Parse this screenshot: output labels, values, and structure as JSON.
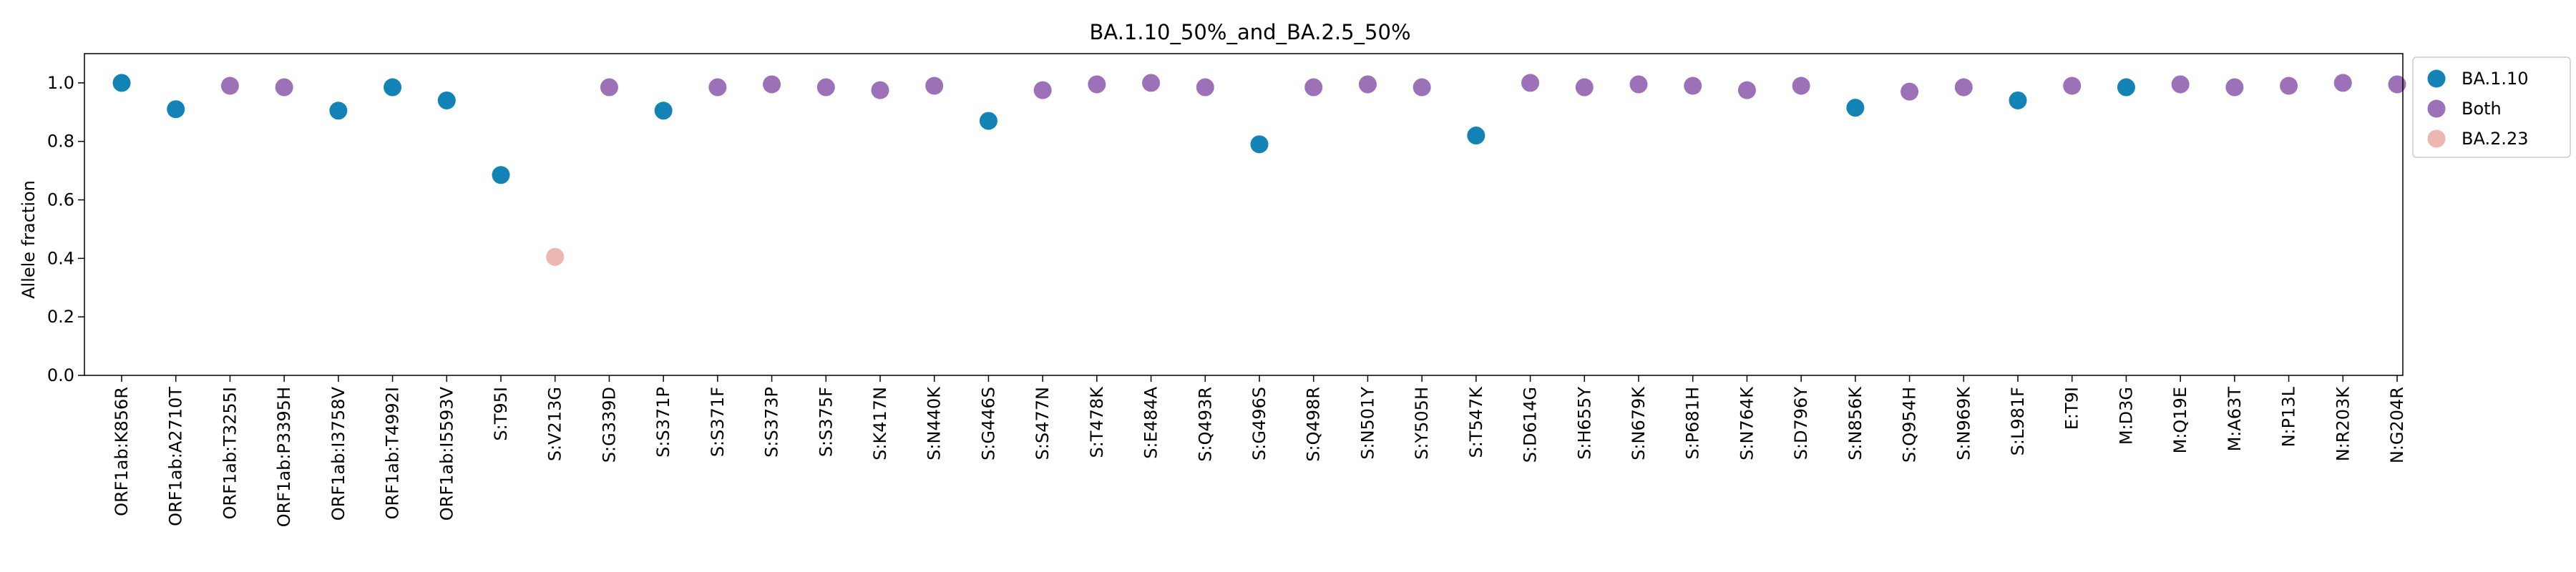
{
  "chart_data": {
    "type": "scatter",
    "title": "BA.1.10_50%_and_BA.2.5_50%",
    "xlabel": "",
    "ylabel": "Allele fraction",
    "ylim": [
      0,
      1.1
    ],
    "yticks": [
      "0.0",
      "0.2",
      "0.4",
      "0.6",
      "0.8",
      "1.0"
    ],
    "grid": false,
    "legend_position": "outside-top-right",
    "categories": [
      "ORF1ab:K856R",
      "ORF1ab:A2710T",
      "ORF1ab:T3255I",
      "ORF1ab:P3395H",
      "ORF1ab:I3758V",
      "ORF1ab:T4992I",
      "ORF1ab:I5593V",
      "S:T95I",
      "S:V213G",
      "S:G339D",
      "S:S371P",
      "S:S371F",
      "S:S373P",
      "S:S375F",
      "S:K417N",
      "S:N440K",
      "S:G446S",
      "S:S477N",
      "S:T478K",
      "S:E484A",
      "S:Q493R",
      "S:G496S",
      "S:Q498R",
      "S:N501Y",
      "S:Y505H",
      "S:T547K",
      "S:D614G",
      "S:H655Y",
      "S:N679K",
      "S:P681H",
      "S:N764K",
      "S:D796Y",
      "S:N856K",
      "S:Q954H",
      "S:N969K",
      "S:L981F",
      "E:T9I",
      "M:D3G",
      "M:Q19E",
      "M:A63T",
      "N:P13L",
      "N:R203K",
      "N:G204R"
    ],
    "series": [
      {
        "name": "BA.1.10",
        "color": "#1283b4"
      },
      {
        "name": "Both",
        "color": "#9d71b8"
      },
      {
        "name": "BA.2.23",
        "color": "#ecb6b1"
      }
    ],
    "points": [
      {
        "x": "ORF1ab:K856R",
        "y": 1.0,
        "series": "BA.1.10"
      },
      {
        "x": "ORF1ab:A2710T",
        "y": 0.91,
        "series": "BA.1.10"
      },
      {
        "x": "ORF1ab:T3255I",
        "y": 0.99,
        "series": "Both"
      },
      {
        "x": "ORF1ab:P3395H",
        "y": 0.985,
        "series": "Both"
      },
      {
        "x": "ORF1ab:I3758V",
        "y": 0.905,
        "series": "BA.1.10"
      },
      {
        "x": "ORF1ab:T4992I",
        "y": 0.985,
        "series": "BA.1.10"
      },
      {
        "x": "ORF1ab:I5593V",
        "y": 0.94,
        "series": "BA.1.10"
      },
      {
        "x": "S:T95I",
        "y": 0.685,
        "series": "BA.1.10"
      },
      {
        "x": "S:V213G",
        "y": 0.405,
        "series": "BA.2.23"
      },
      {
        "x": "S:G339D",
        "y": 0.985,
        "series": "Both"
      },
      {
        "x": "S:S371P",
        "y": 0.905,
        "series": "BA.1.10"
      },
      {
        "x": "S:S371F",
        "y": 0.985,
        "series": "Both"
      },
      {
        "x": "S:S373P",
        "y": 0.995,
        "series": "Both"
      },
      {
        "x": "S:S375F",
        "y": 0.985,
        "series": "Both"
      },
      {
        "x": "S:K417N",
        "y": 0.975,
        "series": "Both"
      },
      {
        "x": "S:N440K",
        "y": 0.99,
        "series": "Both"
      },
      {
        "x": "S:G446S",
        "y": 0.87,
        "series": "BA.1.10"
      },
      {
        "x": "S:S477N",
        "y": 0.975,
        "series": "Both"
      },
      {
        "x": "S:T478K",
        "y": 0.995,
        "series": "Both"
      },
      {
        "x": "S:E484A",
        "y": 1.0,
        "series": "Both"
      },
      {
        "x": "S:Q493R",
        "y": 0.985,
        "series": "Both"
      },
      {
        "x": "S:G496S",
        "y": 0.79,
        "series": "BA.1.10"
      },
      {
        "x": "S:Q498R",
        "y": 0.985,
        "series": "Both"
      },
      {
        "x": "S:N501Y",
        "y": 0.995,
        "series": "Both"
      },
      {
        "x": "S:Y505H",
        "y": 0.985,
        "series": "Both"
      },
      {
        "x": "S:T547K",
        "y": 0.82,
        "series": "BA.1.10"
      },
      {
        "x": "S:D614G",
        "y": 1.0,
        "series": "Both"
      },
      {
        "x": "S:H655Y",
        "y": 0.985,
        "series": "Both"
      },
      {
        "x": "S:N679K",
        "y": 0.995,
        "series": "Both"
      },
      {
        "x": "S:P681H",
        "y": 0.99,
        "series": "Both"
      },
      {
        "x": "S:N764K",
        "y": 0.975,
        "series": "Both"
      },
      {
        "x": "S:D796Y",
        "y": 0.99,
        "series": "Both"
      },
      {
        "x": "S:N856K",
        "y": 0.915,
        "series": "BA.1.10"
      },
      {
        "x": "S:Q954H",
        "y": 0.97,
        "series": "Both"
      },
      {
        "x": "S:N969K",
        "y": 0.985,
        "series": "Both"
      },
      {
        "x": "S:L981F",
        "y": 0.94,
        "series": "BA.1.10"
      },
      {
        "x": "E:T9I",
        "y": 0.99,
        "series": "Both"
      },
      {
        "x": "M:D3G",
        "y": 0.985,
        "series": "BA.1.10"
      },
      {
        "x": "M:Q19E",
        "y": 0.995,
        "series": "Both"
      },
      {
        "x": "M:A63T",
        "y": 0.985,
        "series": "Both"
      },
      {
        "x": "N:P13L",
        "y": 0.99,
        "series": "Both"
      },
      {
        "x": "N:R203K",
        "y": 1.0,
        "series": "Both"
      },
      {
        "x": "N:G204R",
        "y": 0.995,
        "series": "Both"
      }
    ]
  }
}
